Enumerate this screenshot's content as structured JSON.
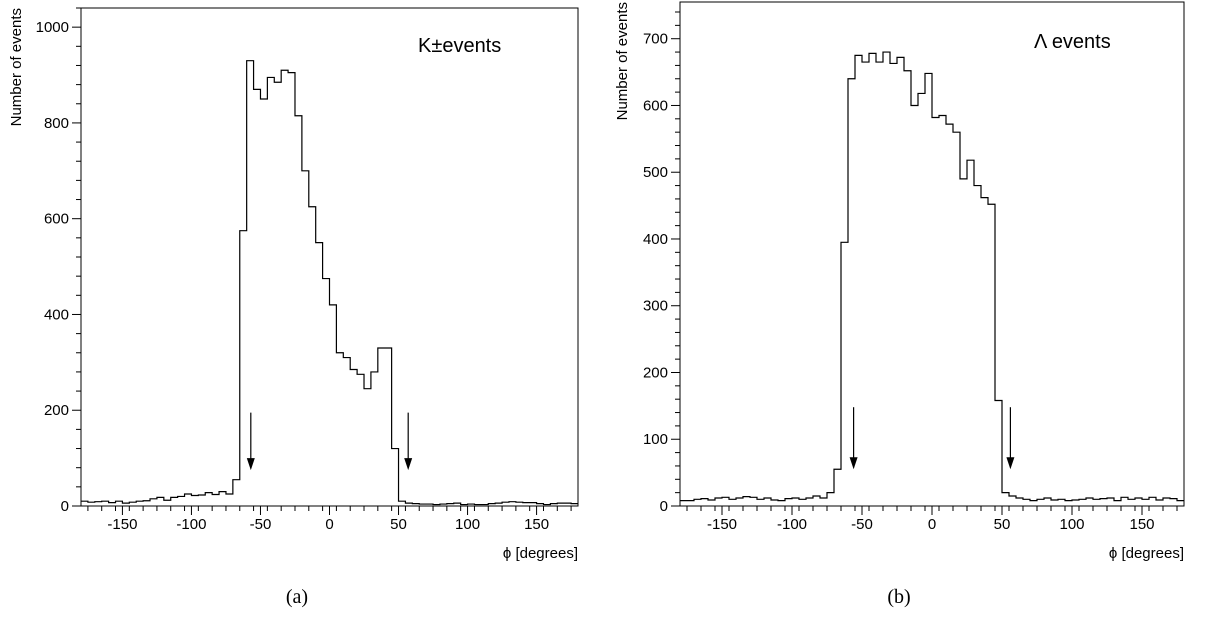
{
  "chart_data": [
    {
      "type": "histogram",
      "caption": "(a)",
      "annotation": "K±events",
      "xlabel": "ϕ [degrees]",
      "ylabel": "Number of events",
      "xlim": [
        -180,
        180
      ],
      "ylim": [
        0,
        1040
      ],
      "xticks": [
        -150,
        -100,
        -50,
        0,
        50,
        100,
        150
      ],
      "yticks": [
        0,
        200,
        400,
        600,
        800,
        1000
      ],
      "bin_width": 5,
      "bin_start": -180,
      "values": [
        10,
        8,
        9,
        10,
        7,
        10,
        6,
        8,
        10,
        11,
        15,
        18,
        12,
        18,
        20,
        25,
        22,
        23,
        28,
        24,
        30,
        25,
        55,
        575,
        930,
        870,
        850,
        895,
        885,
        910,
        905,
        815,
        700,
        625,
        550,
        475,
        420,
        320,
        310,
        285,
        275,
        245,
        280,
        330,
        330,
        120,
        10,
        6,
        5,
        4,
        4,
        3,
        4,
        5,
        6,
        3,
        4,
        3,
        3,
        5,
        6,
        8,
        9,
        8,
        7,
        7,
        5,
        3,
        5,
        6,
        6,
        5
      ],
      "arrows": [
        {
          "x": -57,
          "y_from": 195,
          "y_to": 75
        },
        {
          "x": 57,
          "y_from": 195,
          "y_to": 75
        }
      ]
    },
    {
      "type": "histogram",
      "caption": "(b)",
      "annotation": "Λ events",
      "xlabel": "ϕ [degrees]",
      "ylabel": "Number of events",
      "xlim": [
        -180,
        180
      ],
      "ylim": [
        0,
        755
      ],
      "xticks": [
        -150,
        -100,
        -50,
        0,
        50,
        100,
        150
      ],
      "yticks": [
        0,
        100,
        200,
        300,
        400,
        500,
        600,
        700
      ],
      "bin_width": 5,
      "bin_start": -180,
      "values": [
        8,
        8,
        10,
        11,
        9,
        12,
        13,
        10,
        12,
        14,
        13,
        10,
        12,
        9,
        8,
        11,
        12,
        10,
        12,
        15,
        12,
        20,
        55,
        395,
        640,
        675,
        665,
        678,
        665,
        680,
        663,
        672,
        652,
        600,
        618,
        648,
        582,
        585,
        572,
        560,
        490,
        518,
        480,
        462,
        452,
        158,
        20,
        15,
        12,
        10,
        8,
        10,
        12,
        9,
        10,
        8,
        9,
        10,
        12,
        10,
        11,
        12,
        8,
        13,
        10,
        12,
        10,
        13,
        9,
        12,
        11,
        8
      ],
      "arrows": [
        {
          "x": -56,
          "y_from": 148,
          "y_to": 55
        },
        {
          "x": 56,
          "y_from": 148,
          "y_to": 55
        }
      ]
    }
  ]
}
